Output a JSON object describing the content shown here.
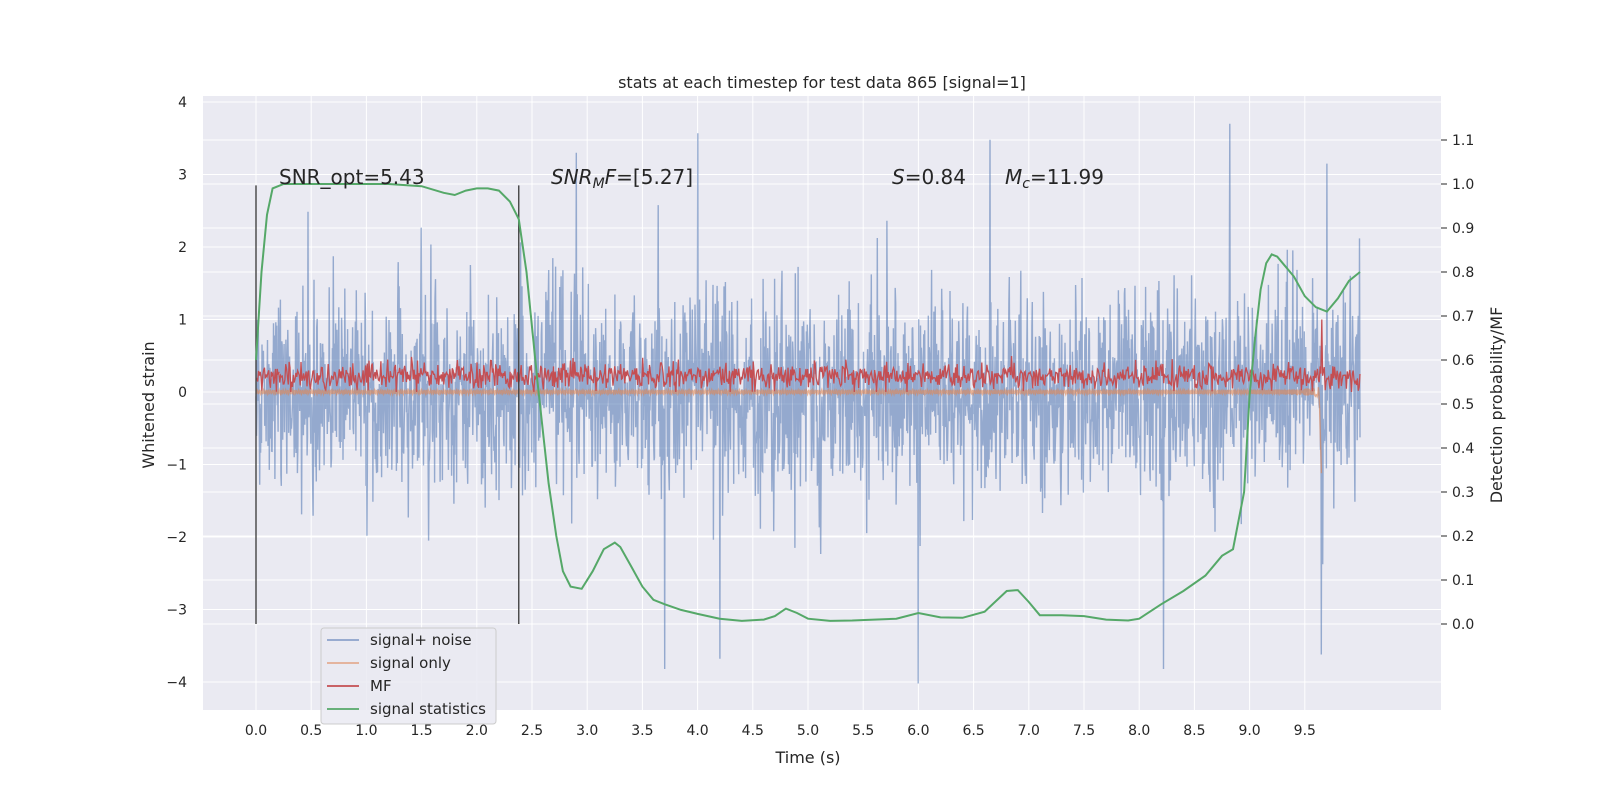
{
  "chart_data": {
    "type": "line",
    "title": "stats at each timestep for test data 865 [signal=1]",
    "xlabel": "Time (s)",
    "ylabel": "Whitened strain",
    "ylabel_right": "Detection probability/MF",
    "xlim": [
      -0.5,
      10.5
    ],
    "ylim": [
      -4.45,
      4.1
    ],
    "ylim_right": [
      -0.2,
      1.2
    ],
    "xticks": [
      0.0,
      0.5,
      1.0,
      1.5,
      2.0,
      2.5,
      3.0,
      3.5,
      4.0,
      4.5,
      5.0,
      5.5,
      6.0,
      6.5,
      7.0,
      7.5,
      8.0,
      8.5,
      9.0,
      9.5
    ],
    "xtick_labels": [
      "0.0",
      "0.5",
      "1.0",
      "1.5",
      "2.0",
      "2.5",
      "3.0",
      "3.5",
      "4.0",
      "4.5",
      "5.0",
      "5.5",
      "6.0",
      "6.5",
      "7.0",
      "7.5",
      "8.0",
      "8.5",
      "9.0",
      "9.5"
    ],
    "yticks_left": [
      -4,
      -3,
      -2,
      -1,
      0,
      1,
      2,
      3,
      4
    ],
    "ytick_labels_left": [
      "−4",
      "−3",
      "−2",
      "−1",
      "0",
      "1",
      "2",
      "3",
      "4"
    ],
    "yticks_right": [
      0.0,
      0.1,
      0.2,
      0.3,
      0.4,
      0.5,
      0.6,
      0.7,
      0.8,
      0.9,
      1.0,
      1.1
    ],
    "ytick_labels_right": [
      "0.0",
      "0.1",
      "0.2",
      "0.3",
      "0.4",
      "0.5",
      "0.6",
      "0.7",
      "0.8",
      "0.9",
      "1.0",
      "1.1"
    ],
    "grid": true,
    "legend": {
      "placement": "lower-left",
      "entries": [
        "signal+ noise",
        "signal only",
        "MF",
        "signal statistics"
      ]
    },
    "annotations": {
      "snr_opt": "SNR_opt=5.43",
      "snr_mf_sym": "SNR",
      "snr_mf_sub": "M",
      "snr_mf_sym2": "F",
      "snr_mf_val": "=[5.27]",
      "s_sym": "S",
      "s_val": "=0.84",
      "mc_sym": "M",
      "mc_sub": "c",
      "mc_val": "=11.99"
    },
    "vlines": [
      0.0,
      2.38
    ],
    "series": [
      {
        "name": "signal+ noise",
        "color": "#4c72b0",
        "opacity": 0.55,
        "t_range": [
          0.0,
          10.0
        ],
        "envelope_typical": 1.3,
        "peaks": [
          [
            2.9,
            3.3
          ],
          [
            4.0,
            3.57
          ],
          [
            8.82,
            3.7
          ],
          [
            6.65,
            3.48
          ],
          [
            9.7,
            3.15
          ]
        ],
        "troughs": [
          [
            3.7,
            -3.82
          ],
          [
            6.0,
            -4.02
          ],
          [
            9.65,
            -3.62
          ],
          [
            4.2,
            -3.68
          ],
          [
            8.22,
            -3.82
          ]
        ]
      },
      {
        "name": "signal only",
        "color": "#dd8452",
        "peak_time": 9.65,
        "peak_min": -1.12
      },
      {
        "name": "MF",
        "color": "#c44e52",
        "baseline": 0.22,
        "spike": [
          9.65,
          1.0
        ]
      },
      {
        "name": "signal statistics",
        "color": "#55a868",
        "axis": "right",
        "t": [
          0.0,
          0.05,
          0.1,
          0.15,
          0.25,
          0.4,
          0.6,
          0.9,
          1.2,
          1.5,
          1.7,
          1.8,
          1.9,
          2.0,
          2.1,
          2.2,
          2.3,
          2.38,
          2.45,
          2.55,
          2.65,
          2.72,
          2.78,
          2.85,
          2.95,
          3.05,
          3.15,
          3.25,
          3.3,
          3.4,
          3.5,
          3.6,
          3.7,
          3.85,
          4.0,
          4.2,
          4.4,
          4.6,
          4.7,
          4.8,
          4.9,
          5.0,
          5.2,
          5.4,
          5.6,
          5.8,
          6.0,
          6.2,
          6.4,
          6.6,
          6.8,
          6.9,
          7.0,
          7.1,
          7.3,
          7.5,
          7.7,
          7.9,
          8.0,
          8.2,
          8.4,
          8.6,
          8.75,
          8.85,
          8.95,
          9.0,
          9.05,
          9.1,
          9.15,
          9.2,
          9.25,
          9.3,
          9.4,
          9.5,
          9.6,
          9.7,
          9.8,
          9.9,
          10.0
        ],
        "v": [
          0.6,
          0.8,
          0.93,
          0.99,
          1.0,
          1.0,
          1.0,
          1.0,
          1.0,
          0.995,
          0.98,
          0.975,
          0.985,
          0.99,
          0.99,
          0.985,
          0.96,
          0.92,
          0.8,
          0.55,
          0.32,
          0.2,
          0.12,
          0.085,
          0.08,
          0.12,
          0.17,
          0.185,
          0.175,
          0.13,
          0.085,
          0.055,
          0.045,
          0.032,
          0.023,
          0.012,
          0.007,
          0.01,
          0.018,
          0.035,
          0.025,
          0.012,
          0.007,
          0.008,
          0.01,
          0.012,
          0.025,
          0.015,
          0.014,
          0.028,
          0.075,
          0.077,
          0.05,
          0.02,
          0.02,
          0.018,
          0.01,
          0.008,
          0.012,
          0.045,
          0.075,
          0.11,
          0.155,
          0.17,
          0.3,
          0.52,
          0.65,
          0.76,
          0.82,
          0.84,
          0.835,
          0.82,
          0.79,
          0.745,
          0.72,
          0.71,
          0.74,
          0.78,
          0.8
        ]
      }
    ]
  }
}
